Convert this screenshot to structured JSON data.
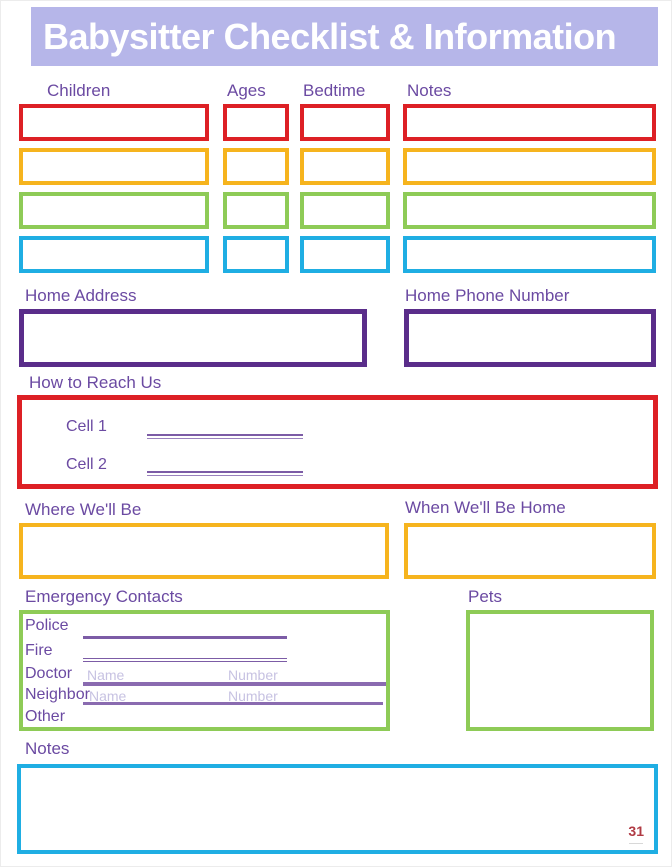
{
  "header": {
    "title": "Babysitter Checklist & Information"
  },
  "colors": {
    "banner": "#b6b6e9",
    "title_text": "#ffffff",
    "label_purple": "#6b4aa2",
    "row_red": "#dd2025",
    "row_yellow": "#f6b41e",
    "row_green": "#8ecb57",
    "row_cyan": "#1faee3",
    "box_purple": "#5a2d8a",
    "write_line": "#7c5ca6",
    "placeholder": "#c7c2e2",
    "logo_red": "#b03a43"
  },
  "children_section": {
    "headers": [
      "Children",
      "Ages",
      "Bedtime",
      "Notes"
    ],
    "rows": [
      {
        "color": "#dd2025"
      },
      {
        "color": "#f6b41e"
      },
      {
        "color": "#8ecb57"
      },
      {
        "color": "#1faee3"
      }
    ]
  },
  "home_address": {
    "label": "Home Address"
  },
  "home_phone": {
    "label": "Home Phone Number"
  },
  "reach_us": {
    "label": "How to Reach Us",
    "fields": [
      {
        "label": "Cell 1"
      },
      {
        "label": "Cell 2"
      }
    ]
  },
  "where": {
    "label": "Where We'll Be"
  },
  "when": {
    "label": "When We'll Be Home"
  },
  "emergency": {
    "label": "Emergency Contacts",
    "rows": [
      {
        "label": "Police"
      },
      {
        "label": "Fire"
      },
      {
        "label": "Doctor",
        "name_placeholder": "Name",
        "number_placeholder": "Number"
      },
      {
        "label": "Neighbor",
        "name_placeholder": "Name",
        "number_placeholder": "Number"
      },
      {
        "label": "Other"
      }
    ]
  },
  "pets": {
    "label": "Pets"
  },
  "notes": {
    "label": "Notes"
  },
  "branding": {
    "logo_text": "31"
  }
}
